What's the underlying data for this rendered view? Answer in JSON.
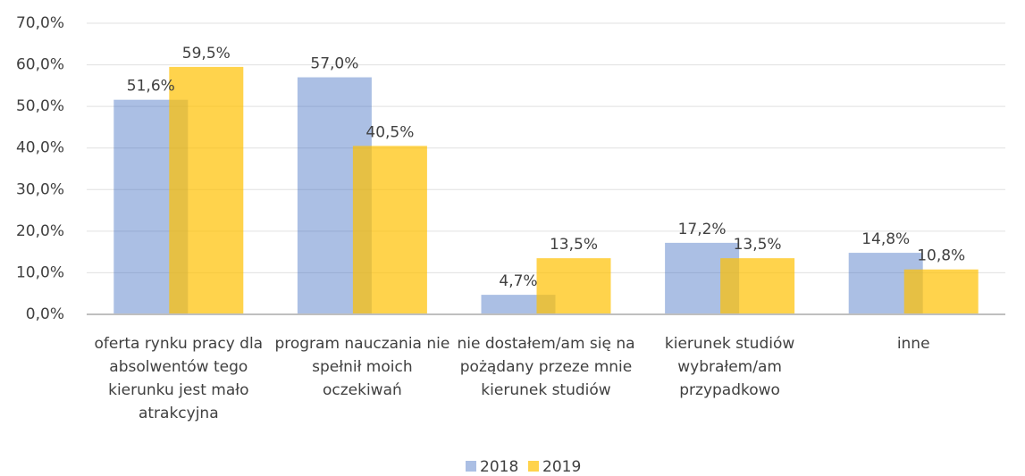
{
  "chart_data": {
    "type": "bar",
    "categories": [
      "oferta rynku pracy dla absolwentów tego kierunku jest mało atrakcyjna",
      "program nauczania nie spełnił moich oczekiwań",
      "nie dostałem/am się na pożądany przeze mnie kierunek studiów",
      "kierunek studiów wybrałem/am przypadkowo",
      "inne"
    ],
    "series": [
      {
        "name": "2018",
        "color": "#4472c4",
        "values": [
          51.6,
          57.0,
          4.7,
          17.2,
          14.8
        ],
        "value_labels": [
          "51,6%",
          "57,0%",
          "4,7%",
          "17,2%",
          "14,8%"
        ]
      },
      {
        "name": "2019",
        "color": "#ffc000",
        "values": [
          59.5,
          40.5,
          13.5,
          13.5,
          10.8
        ],
        "value_labels": [
          "59,5%",
          "40,5%",
          "13,5%",
          "13,5%",
          "10,8%"
        ]
      }
    ],
    "ylim": [
      0,
      70
    ],
    "yticks": [
      {
        "value": 0,
        "label": "0,0%"
      },
      {
        "value": 10,
        "label": "10,0%"
      },
      {
        "value": 20,
        "label": "20,0%"
      },
      {
        "value": 30,
        "label": "30,0%"
      },
      {
        "value": 40,
        "label": "40,0%"
      },
      {
        "value": 50,
        "label": "50,0%"
      },
      {
        "value": 60,
        "label": "60,0%"
      },
      {
        "value": 70,
        "label": "70,0%"
      }
    ],
    "grid": true,
    "legend": "bottom"
  }
}
